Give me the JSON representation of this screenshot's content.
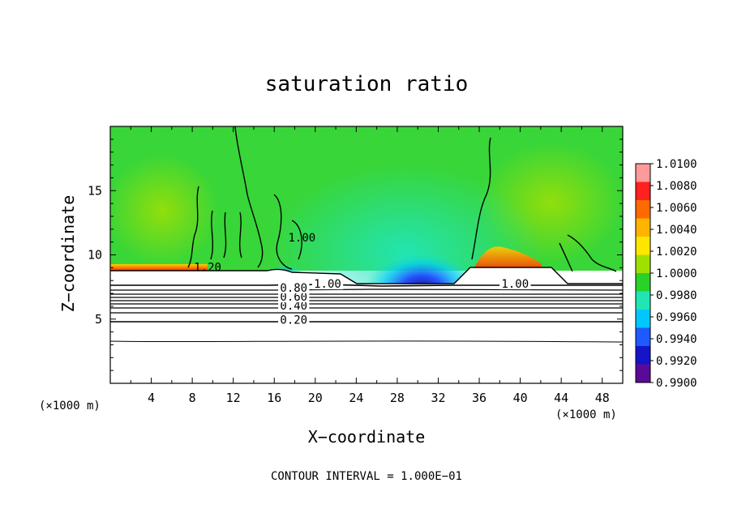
{
  "chart_data": {
    "type": "heatmap",
    "title": "saturation ratio",
    "xlabel": "X−coordinate",
    "ylabel": "Z−coordinate",
    "x_unit": "(×1000 m)",
    "y_unit": "(×1000 m)",
    "xlim": [
      0,
      50
    ],
    "ylim": [
      0,
      20
    ],
    "x_ticks": [
      4,
      8,
      12,
      16,
      20,
      24,
      28,
      32,
      36,
      40,
      44,
      48
    ],
    "y_ticks": [
      5,
      10,
      15
    ],
    "colorbar": {
      "min": 0.99,
      "max": 1.01,
      "levels": [
        "1.0100",
        "1.0080",
        "1.0060",
        "1.0040",
        "1.0020",
        "1.0000",
        "0.9980",
        "0.9960",
        "0.9940",
        "0.9920",
        "0.9900"
      ],
      "colors": [
        "#ff9a9a",
        "#ff2020",
        "#ff6a00",
        "#ffb400",
        "#ffe600",
        "#a0e000",
        "#28d228",
        "#20e6b4",
        "#00c8ff",
        "#1e5aff",
        "#1414c8",
        "#5a0a9a"
      ]
    },
    "contour_interval": "1.000E−01",
    "contour_labels": [
      {
        "text": "0.20",
        "x": 17.9,
        "z": 4.7
      },
      {
        "text": "0.40",
        "x": 17.9,
        "z": 5.8
      },
      {
        "text": "0.60",
        "x": 17.9,
        "z": 6.5
      },
      {
        "text": "0.80",
        "x": 17.9,
        "z": 7.2
      },
      {
        "text": "1.00",
        "x": 21.2,
        "z": 7.5
      },
      {
        "text": "1.00",
        "x": 39.5,
        "z": 7.5
      },
      {
        "text": "1.00",
        "x": 18.7,
        "z": 11.1
      },
      {
        "text": "1.20",
        "x": 9.5,
        "z": 8.8
      }
    ]
  },
  "footer": "CONTOUR INTERVAL = 1.000E−01"
}
